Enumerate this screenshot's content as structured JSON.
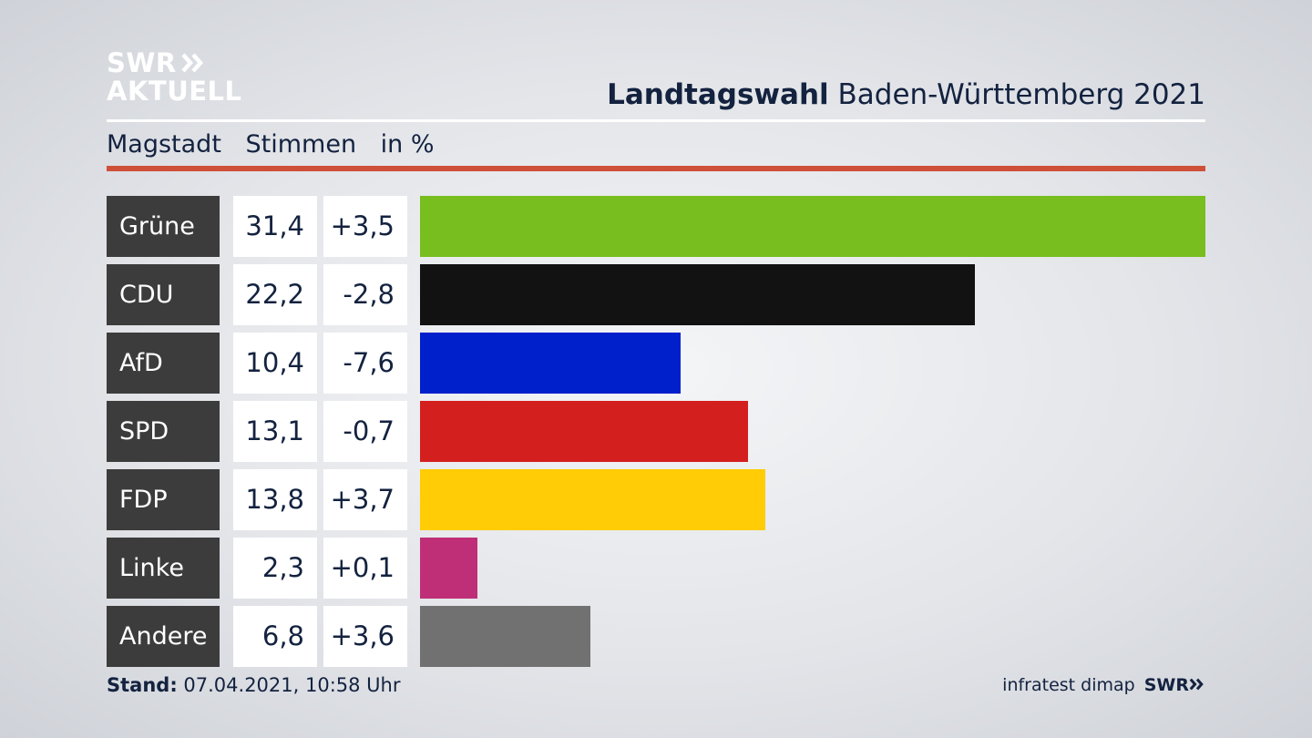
{
  "logo": {
    "line1": "SWR",
    "line2": "AKTUELL"
  },
  "title": {
    "bold": "Landtagswahl",
    "rest": " Baden-Württemberg 2021"
  },
  "subhead": {
    "place": "Magstadt",
    "measure": "Stimmen",
    "unit": "in %"
  },
  "footer": {
    "stand_label": "Stand:",
    "stand_value": " 07.04.2021, 10:58 Uhr",
    "source": "infratest dimap",
    "brand": "SWR"
  },
  "chart_data": {
    "type": "bar",
    "orientation": "horizontal",
    "categories": [
      "Grüne",
      "CDU",
      "AfD",
      "SPD",
      "FDP",
      "Linke",
      "Andere"
    ],
    "values": [
      31.4,
      22.2,
      10.4,
      13.1,
      13.8,
      2.3,
      6.8
    ],
    "values_label": [
      "31,4",
      "22,2",
      "10,4",
      "13,1",
      "13,8",
      "2,3",
      "6,8"
    ],
    "diff_label": [
      "+3,5",
      "-2,8",
      "-7,6",
      "-0,7",
      "+3,7",
      "+0,1",
      "+3,6"
    ],
    "colors": [
      "#78be1e",
      "#121212",
      "#0020cc",
      "#d41f1f",
      "#ffcc05",
      "#bf2f77",
      "#717171"
    ],
    "xlim": [
      0,
      31.4
    ]
  }
}
